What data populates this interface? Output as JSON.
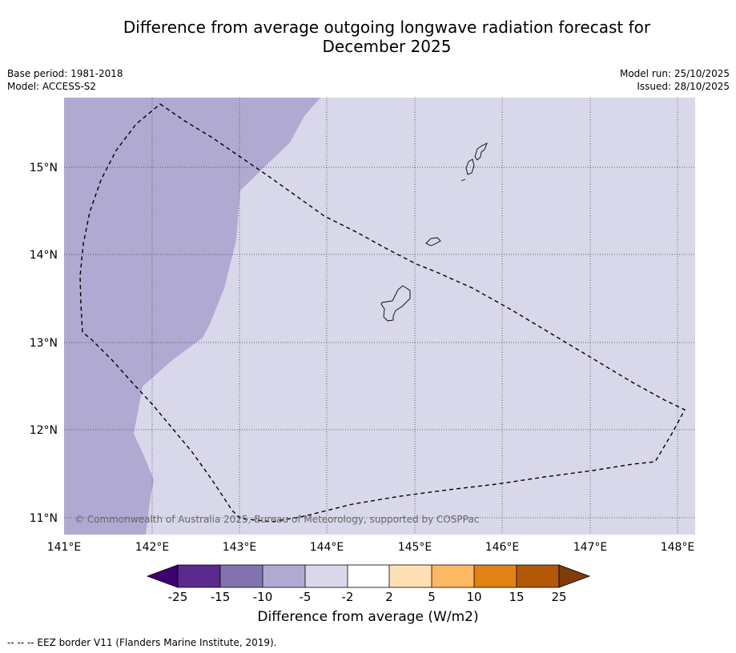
{
  "title_line1": "Difference from average outgoing longwave radiation forecast for",
  "title_line2": "December 2025",
  "meta_left": {
    "base_period": "Base period: 1981-2018",
    "model": "Model: ACCESS-S2"
  },
  "meta_right": {
    "model_run": "Model run: 25/10/2025",
    "issued": "Issued: 28/10/2025"
  },
  "map": {
    "lon_labels": [
      "141°E",
      "142°E",
      "143°E",
      "144°E",
      "145°E",
      "146°E",
      "147°E",
      "148°E"
    ],
    "lat_labels": [
      "15°N",
      "14°N",
      "13°N",
      "12°N",
      "11°N"
    ],
    "copyright": "© Commonwealth of Australia 2025, Bureau of Meteorology, supported by COSPPac",
    "region_colors": {
      "minus10_to_minus5": "#b0aad2",
      "minus5_to_minus2": "#d8d8ea"
    }
  },
  "colorbar": {
    "ticks": [
      "-25",
      "-15",
      "-10",
      "-5",
      "-2",
      "2",
      "5",
      "10",
      "15",
      "25"
    ],
    "colors": [
      "#3f0071",
      "#5a2a8c",
      "#8273b0",
      "#b0aad2",
      "#d8d8ea",
      "#ffffff",
      "#fde0b4",
      "#fdb863",
      "#e08214",
      "#b35806",
      "#7f3b08"
    ],
    "title": "Difference from average (W/m2)"
  },
  "footer": "--  --  -- EEZ border V11 (Flanders Marine Institute, 2019)."
}
